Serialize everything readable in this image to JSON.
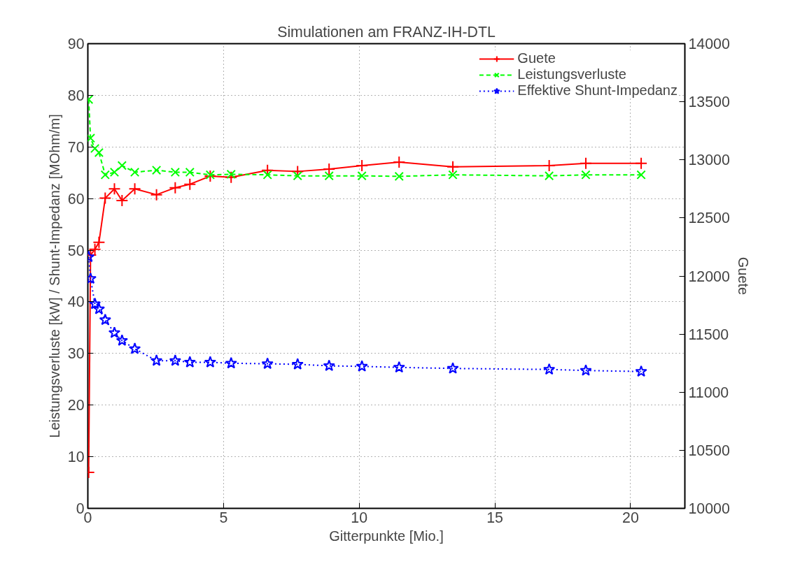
{
  "chart_data": {
    "type": "line",
    "title": "Simulationen am FRANZ-IH-DTL",
    "xlabel": "Gitterpunkte [Mio.]",
    "ylabel": "Leistungsverluste [kW] / Shunt-Impedanz [MOhm/m]",
    "y2label": "Guete",
    "x": [
      0.03,
      0.1,
      0.26,
      0.41,
      0.64,
      0.98,
      1.26,
      1.73,
      2.53,
      3.22,
      3.76,
      4.51,
      5.28,
      6.62,
      7.73,
      8.89,
      10.1,
      11.47,
      13.45,
      17.0,
      18.35,
      20.39
    ],
    "series": [
      {
        "name": "Guete",
        "color": "#ff0000",
        "axis": "y2",
        "marker": "cross",
        "line_style": "solid",
        "values": [
          10310,
          12180,
          12230,
          12290,
          12670,
          12750,
          12650,
          12750,
          12700,
          12760,
          12790,
          12860,
          12850,
          12910,
          12900,
          12920,
          12950,
          12980,
          12940,
          12950,
          12970,
          12970
        ]
      },
      {
        "name": "Leistungsverluste",
        "color": "#00ff00",
        "marker": "x",
        "line_style": "dashed",
        "values": [
          79.2,
          71.7,
          69.7,
          68.9,
          64.6,
          65.1,
          66.4,
          65.1,
          65.5,
          65.1,
          65.1,
          64.6,
          64.7,
          64.6,
          64.4,
          64.4,
          64.4,
          64.3,
          64.6,
          64.4,
          64.6,
          64.6
        ]
      },
      {
        "name": "Effektive Shunt-Impedanz",
        "color": "#0000ff",
        "marker": "star",
        "line_style": "dotted",
        "values": [
          48.7,
          44.5,
          39.6,
          38.6,
          36.5,
          34.0,
          32.5,
          30.9,
          28.6,
          28.6,
          28.3,
          28.3,
          28.1,
          28.0,
          27.9,
          27.6,
          27.5,
          27.3,
          27.1,
          26.9,
          26.7,
          26.5
        ]
      }
    ],
    "xlim": [
      0,
      22
    ],
    "xticks": [
      0,
      5,
      10,
      15,
      20
    ],
    "ylim": [
      0,
      90
    ],
    "yticks": [
      0,
      10,
      20,
      30,
      40,
      50,
      60,
      70,
      80,
      90
    ],
    "y2lim": [
      10000,
      14000
    ],
    "y2ticks": [
      10000,
      10500,
      11000,
      11500,
      12000,
      12500,
      13000,
      13500,
      14000
    ],
    "grid": true,
    "legend": "top right"
  }
}
